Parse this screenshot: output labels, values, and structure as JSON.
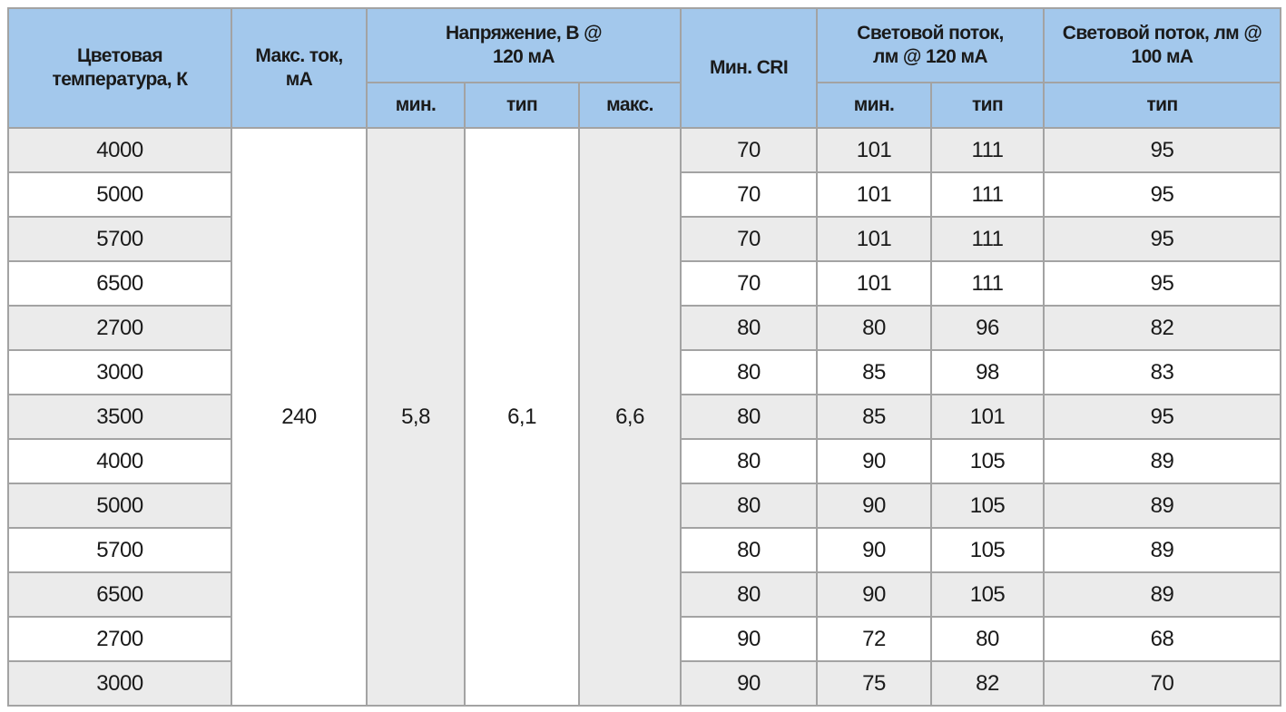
{
  "headers": {
    "color_temp": "Цветовая температура, К",
    "max_current": "Макс. ток, мА",
    "voltage": "Напряжение, В @ 120 мА",
    "min_cri": "Мин. CRI",
    "flux120": "Световой поток, лм @ 120 мА",
    "flux100": "Световой поток, лм @ 100 мА",
    "v_min": "мин.",
    "v_typ": "тип",
    "v_max": "макс.",
    "f120_min": "мин.",
    "f120_typ": "тип",
    "f100_typ": "тип"
  },
  "merged": {
    "max_current": "240",
    "v_min": "5,8",
    "v_typ": "6,1",
    "v_max": "6,6"
  },
  "rows": [
    [
      "4000",
      "70",
      "101",
      "111",
      "95"
    ],
    [
      "5000",
      "70",
      "101",
      "111",
      "95"
    ],
    [
      "5700",
      "70",
      "101",
      "111",
      "95"
    ],
    [
      "6500",
      "70",
      "101",
      "111",
      "95"
    ],
    [
      "2700",
      "80",
      "80",
      "96",
      "82"
    ],
    [
      "3000",
      "80",
      "85",
      "98",
      "83"
    ],
    [
      "3500",
      "80",
      "85",
      "101",
      "95"
    ],
    [
      "4000",
      "80",
      "90",
      "105",
      "89"
    ],
    [
      "5000",
      "80",
      "90",
      "105",
      "89"
    ],
    [
      "5700",
      "80",
      "90",
      "105",
      "89"
    ],
    [
      "6500",
      "80",
      "90",
      "105",
      "89"
    ],
    [
      "2700",
      "90",
      "72",
      "80",
      "68"
    ],
    [
      "3000",
      "90",
      "75",
      "82",
      "70"
    ]
  ],
  "colors": {
    "header": "#a3c8ec",
    "stripe": "#ebebeb",
    "border": "#a3a3a3"
  }
}
